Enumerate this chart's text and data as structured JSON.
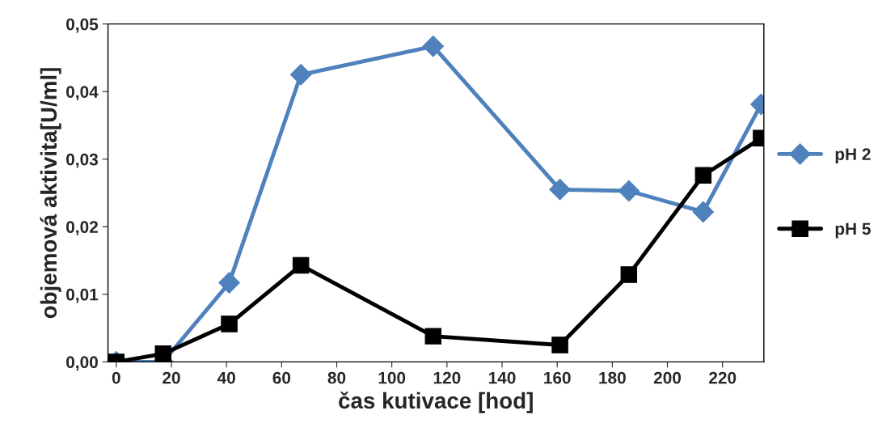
{
  "chart_data": {
    "type": "line",
    "xlabel": "čas kutivace [hod]",
    "ylabel": "objemová aktivita[U/ml]",
    "x": [
      0,
      17,
      41,
      67,
      115,
      161,
      186,
      213,
      234
    ],
    "series": [
      {
        "name": "pH 2",
        "color": "#4f81bd",
        "marker": "diamond",
        "values": [
          0.0,
          0.0,
          0.0117,
          0.0425,
          0.0467,
          0.0255,
          0.0253,
          0.0222,
          0.0381
        ]
      },
      {
        "name": "pH 5",
        "color": "#000000",
        "marker": "square",
        "values": [
          0.0,
          0.0012,
          0.0056,
          0.0143,
          0.0038,
          0.0025,
          0.0129,
          0.0276,
          0.0331
        ]
      }
    ],
    "xlim": [
      -3,
      235
    ],
    "xticks": [
      0,
      20,
      40,
      60,
      80,
      100,
      120,
      140,
      160,
      180,
      200,
      220
    ],
    "ylim": [
      0,
      0.05
    ],
    "yticks": [
      {
        "value": 0,
        "label": "0,00"
      },
      {
        "value": 0.01,
        "label": "0,01"
      },
      {
        "value": 0.02,
        "label": "0,02"
      },
      {
        "value": 0.03,
        "label": "0,03"
      },
      {
        "value": 0.04,
        "label": "0,04"
      },
      {
        "value": 0.05,
        "label": "0,05"
      }
    ],
    "grid": false,
    "legend": "right",
    "line_style": "solid"
  }
}
